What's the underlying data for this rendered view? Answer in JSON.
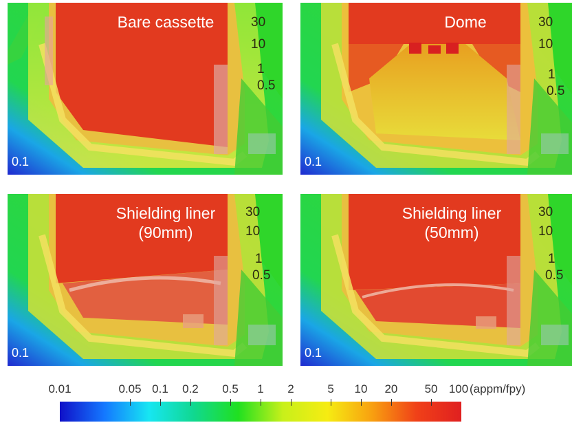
{
  "panels": [
    {
      "title": "Bare cassette",
      "subtitle": "",
      "contour_labels": [
        "30",
        "10",
        "1",
        "0.5"
      ],
      "corner_label": "0.1"
    },
    {
      "title": "Dome",
      "subtitle": "",
      "contour_labels": [
        "30",
        "10",
        "1",
        "0.5"
      ],
      "corner_label": "0.1"
    },
    {
      "title": "Shielding liner",
      "subtitle": "(90mm)",
      "contour_labels": [
        "30",
        "10",
        "1",
        "0.5"
      ],
      "corner_label": "0.1"
    },
    {
      "title": "Shielding liner",
      "subtitle": "(50mm)",
      "contour_labels": [
        "30",
        "10",
        "1",
        "0.5"
      ],
      "corner_label": "0.1"
    }
  ],
  "colorbar": {
    "tick_labels": [
      "0.01",
      "0.05",
      "0.1",
      "0.2",
      "0.5",
      "1",
      "2",
      "5",
      "10",
      "20",
      "50",
      "100"
    ],
    "tick_values": [
      0.01,
      0.05,
      0.1,
      0.2,
      0.5,
      1,
      2,
      5,
      10,
      20,
      50,
      100
    ],
    "units": "(appm/fpy)",
    "colors": [
      "#1010c8",
      "#1478ff",
      "#17e6f2",
      "#10d890",
      "#20e020",
      "#c8f01a",
      "#f6ec12",
      "#f8a010",
      "#f04018",
      "#e02020"
    ],
    "scale": "log"
  },
  "colors": {
    "hot": "#e23a1f",
    "warm": "#f5cf2a",
    "green": "#2fd62a",
    "cyan": "#20d6b0",
    "blue": "#1e2ad6"
  }
}
